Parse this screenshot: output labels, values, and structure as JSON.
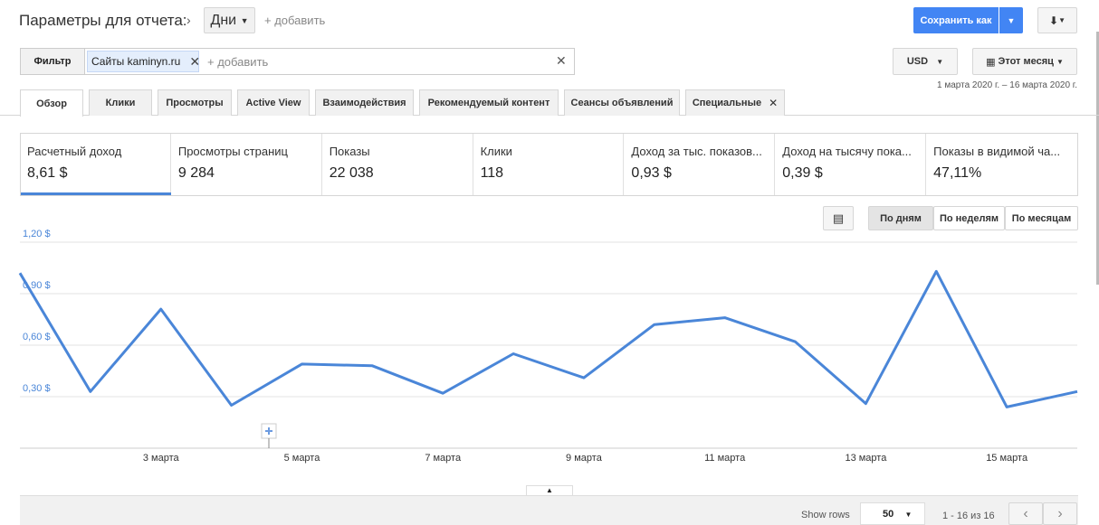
{
  "header": {
    "title": "Параметры для отчета:",
    "dimension": "Дни",
    "add": "+ добавить",
    "save": "Сохранить как"
  },
  "filter": {
    "label": "Фильтр",
    "chip_prefix": "Сайты",
    "chip_value": "kaminyn.ru",
    "add": "+ добавить"
  },
  "currency": "USD",
  "period": "Этот месяц",
  "date_range": "1 марта 2020 г. – 16 марта 2020 г.",
  "tabs": [
    "Обзор",
    "Клики",
    "Просмотры",
    "Active View",
    "Взаимодействия",
    "Рекомендуемый контент",
    "Сеансы объявлений",
    "Специальные"
  ],
  "metrics": [
    {
      "label": "Расчетный доход",
      "value": "8,61 $"
    },
    {
      "label": "Просмотры страниц",
      "value": "9 284"
    },
    {
      "label": "Показы",
      "value": "22 038"
    },
    {
      "label": "Клики",
      "value": "118"
    },
    {
      "label": "Доход за тыс. показов...",
      "value": "0,93 $"
    },
    {
      "label": "Доход на тысячу пока...",
      "value": "0,39 $"
    },
    {
      "label": "Показы в видимой ча...",
      "value": "47,11%"
    }
  ],
  "view_buttons": [
    "По дням",
    "По неделям",
    "По месяцам"
  ],
  "chart_data": {
    "type": "line",
    "categories": [
      null,
      null,
      "3 марта",
      null,
      "5 марта",
      null,
      "7 марта",
      null,
      "9 марта",
      null,
      "11 марта",
      null,
      "13 марта",
      null,
      "15 марта",
      null
    ],
    "series": [
      {
        "name": "Расчетный доход",
        "color": "#4a86d8",
        "values": [
          1.02,
          0.33,
          0.81,
          0.25,
          0.49,
          0.48,
          0.32,
          0.55,
          0.41,
          0.72,
          0.76,
          0.62,
          0.26,
          1.03,
          0.24,
          0.33
        ]
      }
    ],
    "ylim": [
      0,
      1.2
    ],
    "yticks": [
      {
        "value": 0.3,
        "label": "0,30 $"
      },
      {
        "value": 0.6,
        "label": "0,60 $"
      },
      {
        "value": 0.9,
        "label": "0,90 $"
      },
      {
        "value": 1.2,
        "label": "1,20 $"
      }
    ],
    "grid": true
  },
  "footer": {
    "show_rows": "Show rows",
    "rows": "50",
    "range": "1 - 16 из 16"
  }
}
